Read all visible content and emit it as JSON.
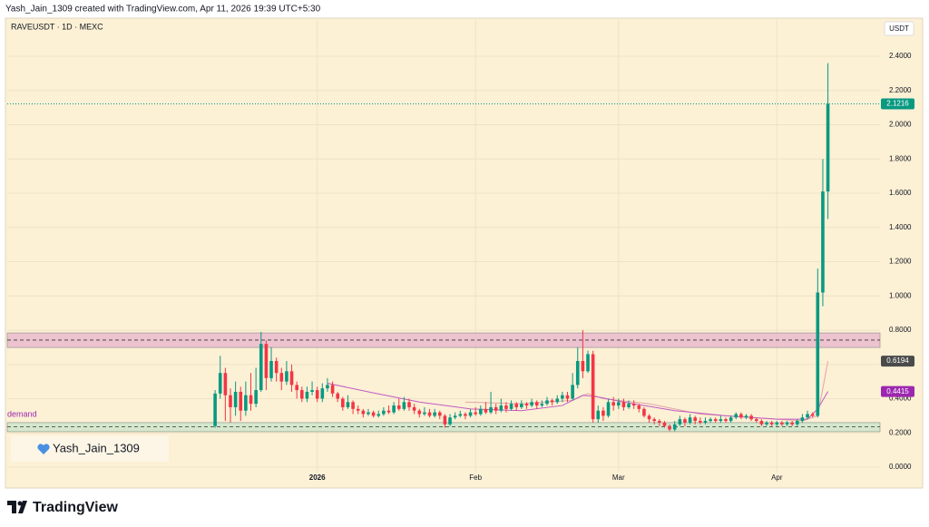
{
  "header": "Yash_Jain_1309 created with TradingView.com, Apr 11, 2026 19:39 UTC+5:30",
  "watermark": "Yash_Jain_1309",
  "brand": "TradingView",
  "chart_data": {
    "type": "candlestick",
    "title": "RAVEUSDT · 1D · MEXC",
    "currency": "USDT",
    "up_color": "#089981",
    "down_color": "#f23645",
    "xlim": [
      -40.7,
      130.2
    ],
    "xticks": [
      {
        "value": 20,
        "label": "2026"
      },
      {
        "value": 51,
        "label": "Feb"
      },
      {
        "value": 79,
        "label": "Mar"
      },
      {
        "value": 110,
        "label": "Apr"
      }
    ],
    "ylim": [
      -0.1165,
      2.612
    ],
    "yticks": [
      {
        "value": 0,
        "label": "0.0000"
      },
      {
        "value": 0.2,
        "label": "0.2000"
      },
      {
        "value": 0.4,
        "label": "0.4000"
      },
      {
        "value": 0.6,
        "label": "0.6000"
      },
      {
        "value": 0.8,
        "label": "0.8000"
      },
      {
        "value": 1.0,
        "label": "1.0000"
      },
      {
        "value": 1.2,
        "label": "1.2000"
      },
      {
        "value": 1.4,
        "label": "1.4000"
      },
      {
        "value": 1.6,
        "label": "1.6000"
      },
      {
        "value": 1.8,
        "label": "1.8000"
      },
      {
        "value": 2.0,
        "label": "2.0000"
      },
      {
        "value": 2.2,
        "label": "2.2000"
      },
      {
        "value": 2.4,
        "label": "2.4000"
      }
    ],
    "grid": true,
    "last_price": 2.1216,
    "zones": [
      {
        "low": 0.699,
        "high": 0.784,
        "mid": 0.742,
        "color": "#e8b4cc"
      },
      {
        "name": "demand",
        "low": 0.207,
        "high": 0.26,
        "mid": 0.235,
        "color": "#c8e6c9"
      }
    ],
    "moving_averages": [
      {
        "color": "#e2a6a6",
        "x": [
          49,
          60,
          70,
          73,
          76,
          85,
          95,
          105,
          115,
          118,
          120
        ],
        "values": [
          0.38,
          0.37,
          0.39,
          0.43,
          0.4,
          0.37,
          0.31,
          0.29,
          0.27,
          0.3,
          0.6194
        ],
        "badge": "#4a4a4a"
      },
      {
        "color": "#c25bc2",
        "x": [
          22,
          30,
          40,
          50,
          60,
          68,
          72,
          75,
          80,
          90,
          100,
          110,
          116,
          118,
          120
        ],
        "values": [
          0.49,
          0.44,
          0.38,
          0.34,
          0.33,
          0.36,
          0.42,
          0.41,
          0.38,
          0.33,
          0.3,
          0.28,
          0.28,
          0.34,
          0.4415
        ],
        "badge": "#9c27b0"
      }
    ],
    "ohlc": [
      [
        0.24,
        0.45,
        0.23,
        0.43
      ],
      [
        0.43,
        0.65,
        0.4,
        0.55
      ],
      [
        0.55,
        0.58,
        0.27,
        0.42
      ],
      [
        0.42,
        0.46,
        0.26,
        0.35
      ],
      [
        0.35,
        0.5,
        0.3,
        0.44
      ],
      [
        0.44,
        0.47,
        0.27,
        0.33
      ],
      [
        0.33,
        0.5,
        0.3,
        0.42
      ],
      [
        0.42,
        0.55,
        0.33,
        0.37
      ],
      [
        0.37,
        0.58,
        0.35,
        0.45
      ],
      [
        0.45,
        0.79,
        0.44,
        0.72
      ],
      [
        0.72,
        0.74,
        0.45,
        0.52
      ],
      [
        0.52,
        0.7,
        0.5,
        0.62
      ],
      [
        0.62,
        0.64,
        0.5,
        0.55
      ],
      [
        0.55,
        0.58,
        0.45,
        0.5
      ],
      [
        0.5,
        0.62,
        0.48,
        0.56
      ],
      [
        0.56,
        0.6,
        0.44,
        0.48
      ],
      [
        0.48,
        0.5,
        0.4,
        0.45
      ],
      [
        0.45,
        0.47,
        0.38,
        0.4
      ],
      [
        0.4,
        0.47,
        0.38,
        0.44
      ],
      [
        0.44,
        0.5,
        0.42,
        0.45
      ],
      [
        0.45,
        0.47,
        0.38,
        0.4
      ],
      [
        0.4,
        0.49,
        0.38,
        0.46
      ],
      [
        0.46,
        0.52,
        0.44,
        0.48
      ],
      [
        0.48,
        0.5,
        0.41,
        0.43
      ],
      [
        0.43,
        0.44,
        0.38,
        0.4
      ],
      [
        0.4,
        0.41,
        0.33,
        0.35
      ],
      [
        0.35,
        0.42,
        0.34,
        0.38
      ],
      [
        0.38,
        0.39,
        0.31,
        0.34
      ],
      [
        0.34,
        0.36,
        0.31,
        0.33
      ],
      [
        0.33,
        0.34,
        0.29,
        0.31
      ],
      [
        0.31,
        0.34,
        0.3,
        0.32
      ],
      [
        0.32,
        0.33,
        0.29,
        0.3
      ],
      [
        0.3,
        0.33,
        0.29,
        0.31
      ],
      [
        0.31,
        0.35,
        0.3,
        0.33
      ],
      [
        0.33,
        0.36,
        0.31,
        0.32
      ],
      [
        0.32,
        0.38,
        0.31,
        0.36
      ],
      [
        0.36,
        0.4,
        0.33,
        0.34
      ],
      [
        0.34,
        0.41,
        0.33,
        0.38
      ],
      [
        0.38,
        0.4,
        0.33,
        0.35
      ],
      [
        0.35,
        0.37,
        0.31,
        0.33
      ],
      [
        0.33,
        0.34,
        0.29,
        0.31
      ],
      [
        0.31,
        0.35,
        0.3,
        0.32
      ],
      [
        0.32,
        0.34,
        0.29,
        0.3
      ],
      [
        0.3,
        0.34,
        0.29,
        0.32
      ],
      [
        0.32,
        0.33,
        0.28,
        0.3
      ],
      [
        0.3,
        0.31,
        0.23,
        0.25
      ],
      [
        0.25,
        0.31,
        0.24,
        0.29
      ],
      [
        0.29,
        0.32,
        0.28,
        0.3
      ],
      [
        0.3,
        0.33,
        0.29,
        0.31
      ],
      [
        0.31,
        0.32,
        0.28,
        0.3
      ],
      [
        0.3,
        0.34,
        0.29,
        0.32
      ],
      [
        0.32,
        0.35,
        0.3,
        0.31
      ],
      [
        0.31,
        0.36,
        0.3,
        0.34
      ],
      [
        0.34,
        0.38,
        0.31,
        0.32
      ],
      [
        0.32,
        0.44,
        0.31,
        0.35
      ],
      [
        0.35,
        0.37,
        0.31,
        0.33
      ],
      [
        0.33,
        0.4,
        0.32,
        0.36
      ],
      [
        0.36,
        0.38,
        0.32,
        0.34
      ],
      [
        0.34,
        0.39,
        0.33,
        0.37
      ],
      [
        0.37,
        0.38,
        0.33,
        0.35
      ],
      [
        0.35,
        0.39,
        0.34,
        0.37
      ],
      [
        0.37,
        0.38,
        0.34,
        0.36
      ],
      [
        0.36,
        0.4,
        0.35,
        0.38
      ],
      [
        0.38,
        0.39,
        0.34,
        0.36
      ],
      [
        0.36,
        0.39,
        0.35,
        0.37
      ],
      [
        0.37,
        0.41,
        0.36,
        0.39
      ],
      [
        0.39,
        0.4,
        0.36,
        0.38
      ],
      [
        0.38,
        0.42,
        0.37,
        0.4
      ],
      [
        0.4,
        0.44,
        0.38,
        0.42
      ],
      [
        0.42,
        0.44,
        0.38,
        0.4
      ],
      [
        0.4,
        0.55,
        0.39,
        0.48
      ],
      [
        0.48,
        0.7,
        0.46,
        0.62
      ],
      [
        0.62,
        0.8,
        0.52,
        0.56
      ],
      [
        0.56,
        0.68,
        0.55,
        0.66
      ],
      [
        0.66,
        0.68,
        0.26,
        0.28
      ],
      [
        0.28,
        0.36,
        0.26,
        0.33
      ],
      [
        0.33,
        0.35,
        0.27,
        0.3
      ],
      [
        0.3,
        0.4,
        0.29,
        0.38
      ],
      [
        0.38,
        0.41,
        0.33,
        0.36
      ],
      [
        0.36,
        0.4,
        0.34,
        0.38
      ],
      [
        0.38,
        0.4,
        0.33,
        0.35
      ],
      [
        0.35,
        0.39,
        0.34,
        0.37
      ],
      [
        0.37,
        0.39,
        0.34,
        0.36
      ],
      [
        0.36,
        0.37,
        0.32,
        0.34
      ],
      [
        0.34,
        0.35,
        0.29,
        0.3
      ],
      [
        0.3,
        0.31,
        0.26,
        0.28
      ],
      [
        0.28,
        0.29,
        0.25,
        0.27
      ],
      [
        0.27,
        0.28,
        0.24,
        0.26
      ],
      [
        0.26,
        0.27,
        0.23,
        0.24
      ],
      [
        0.24,
        0.25,
        0.21,
        0.22
      ],
      [
        0.22,
        0.27,
        0.21,
        0.25
      ],
      [
        0.25,
        0.3,
        0.24,
        0.28
      ],
      [
        0.28,
        0.29,
        0.24,
        0.26
      ],
      [
        0.26,
        0.31,
        0.25,
        0.29
      ],
      [
        0.29,
        0.3,
        0.25,
        0.27
      ],
      [
        0.27,
        0.29,
        0.25,
        0.26
      ],
      [
        0.26,
        0.29,
        0.25,
        0.27
      ],
      [
        0.27,
        0.29,
        0.26,
        0.28
      ],
      [
        0.28,
        0.29,
        0.26,
        0.27
      ],
      [
        0.27,
        0.3,
        0.26,
        0.28
      ],
      [
        0.28,
        0.29,
        0.26,
        0.27
      ],
      [
        0.27,
        0.3,
        0.26,
        0.29
      ],
      [
        0.29,
        0.32,
        0.28,
        0.31
      ],
      [
        0.31,
        0.32,
        0.28,
        0.29
      ],
      [
        0.29,
        0.31,
        0.28,
        0.3
      ],
      [
        0.3,
        0.31,
        0.27,
        0.28
      ],
      [
        0.28,
        0.29,
        0.26,
        0.27
      ],
      [
        0.27,
        0.28,
        0.24,
        0.25
      ],
      [
        0.25,
        0.27,
        0.24,
        0.26
      ],
      [
        0.26,
        0.27,
        0.24,
        0.25
      ],
      [
        0.25,
        0.27,
        0.24,
        0.26
      ],
      [
        0.26,
        0.27,
        0.24,
        0.25
      ],
      [
        0.25,
        0.27,
        0.24,
        0.26
      ],
      [
        0.26,
        0.27,
        0.24,
        0.25
      ],
      [
        0.25,
        0.28,
        0.24,
        0.27
      ],
      [
        0.27,
        0.31,
        0.26,
        0.29
      ],
      [
        0.29,
        0.33,
        0.28,
        0.31
      ],
      [
        0.31,
        0.32,
        0.29,
        0.3
      ],
      [
        0.3,
        1.16,
        0.29,
        1.02
      ],
      [
        1.02,
        1.8,
        0.94,
        1.61
      ],
      [
        1.61,
        2.36,
        1.45,
        2.1216
      ]
    ]
  }
}
